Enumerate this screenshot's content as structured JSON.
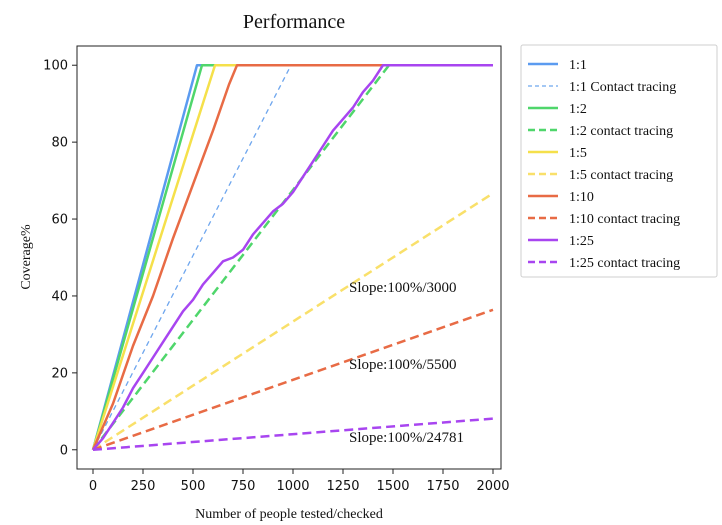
{
  "chart_data": {
    "type": "line",
    "title": "Performance",
    "xlabel": "Number of people tested/checked",
    "ylabel": "Coverage%",
    "xlim": [
      -80,
      2040
    ],
    "ylim": [
      -5,
      105
    ],
    "xticks": [
      "0",
      "250",
      "500",
      "750",
      "1000",
      "1250",
      "1500",
      "1750",
      "2000"
    ],
    "yticks": [
      "0",
      "20",
      "40",
      "60",
      "80",
      "100"
    ],
    "grid": false,
    "legend_position": "outside-right",
    "series": [
      {
        "name": "1:1",
        "color": "#5b9bf0",
        "dash": "solid",
        "width": 2.5,
        "points": [
          [
            0,
            0
          ],
          [
            520,
            100
          ],
          [
            2000,
            100
          ]
        ]
      },
      {
        "name": "1:1 Contact tracing",
        "color": "#6ea6ee",
        "dash": "dashed-thin",
        "width": 1.3,
        "points": [
          [
            0,
            0
          ],
          [
            990,
            100
          ]
        ]
      },
      {
        "name": "1:2",
        "color": "#4fd66b",
        "dash": "solid",
        "width": 2.5,
        "points": [
          [
            0,
            0
          ],
          [
            545,
            100
          ],
          [
            2000,
            100
          ]
        ]
      },
      {
        "name": "1:2 contact tracing",
        "color": "#4fd66b",
        "dash": "dashed",
        "width": 2.5,
        "points": [
          [
            0,
            0
          ],
          [
            1480,
            100
          ],
          [
            2000,
            100
          ]
        ]
      },
      {
        "name": "1:5",
        "color": "#f5e04a",
        "dash": "solid",
        "width": 2.5,
        "points": [
          [
            0,
            0
          ],
          [
            610,
            100
          ],
          [
            2000,
            100
          ]
        ]
      },
      {
        "name": "1:5 contact tracing",
        "color": "#f9e06a",
        "dash": "dashed",
        "width": 2.5,
        "points": [
          [
            0,
            0
          ],
          [
            2000,
            66.7
          ]
        ]
      },
      {
        "name": "1:10",
        "color": "#e86b45",
        "dash": "solid",
        "width": 2.5,
        "points": [
          [
            0,
            0
          ],
          [
            100,
            12
          ],
          [
            200,
            27
          ],
          [
            300,
            40
          ],
          [
            400,
            55
          ],
          [
            500,
            69
          ],
          [
            600,
            83
          ],
          [
            680,
            95
          ],
          [
            720,
            100
          ],
          [
            2000,
            100
          ]
        ]
      },
      {
        "name": "1:10 contact tracing",
        "color": "#e86b45",
        "dash": "dashed",
        "width": 2.5,
        "points": [
          [
            0,
            0
          ],
          [
            2000,
            36.4
          ]
        ]
      },
      {
        "name": "1:25",
        "color": "#a845f0",
        "dash": "solid",
        "width": 2.5,
        "points": [
          [
            0,
            0
          ],
          [
            50,
            3
          ],
          [
            100,
            7
          ],
          [
            150,
            11
          ],
          [
            200,
            16
          ],
          [
            250,
            20
          ],
          [
            300,
            24
          ],
          [
            350,
            28
          ],
          [
            400,
            32
          ],
          [
            450,
            36
          ],
          [
            500,
            39
          ],
          [
            550,
            43
          ],
          [
            600,
            46
          ],
          [
            650,
            49
          ],
          [
            700,
            50
          ],
          [
            750,
            52
          ],
          [
            800,
            56
          ],
          [
            850,
            59
          ],
          [
            900,
            62
          ],
          [
            950,
            64
          ],
          [
            1000,
            67
          ],
          [
            1050,
            71
          ],
          [
            1100,
            75
          ],
          [
            1150,
            79
          ],
          [
            1200,
            83
          ],
          [
            1250,
            86
          ],
          [
            1300,
            89
          ],
          [
            1350,
            93
          ],
          [
            1400,
            96
          ],
          [
            1450,
            100
          ],
          [
            2000,
            100
          ]
        ]
      },
      {
        "name": "1:25 contact tracing",
        "color": "#a845f0",
        "dash": "dashed",
        "width": 2.5,
        "points": [
          [
            0,
            0
          ],
          [
            2000,
            8.1
          ]
        ]
      }
    ],
    "annotations": [
      {
        "text": "Slope:100%/3000",
        "x": 1280,
        "y": 41
      },
      {
        "text": "Slope:100%/5500",
        "x": 1280,
        "y": 21
      },
      {
        "text": "Slope:100%/24781",
        "x": 1280,
        "y": 2
      }
    ]
  }
}
